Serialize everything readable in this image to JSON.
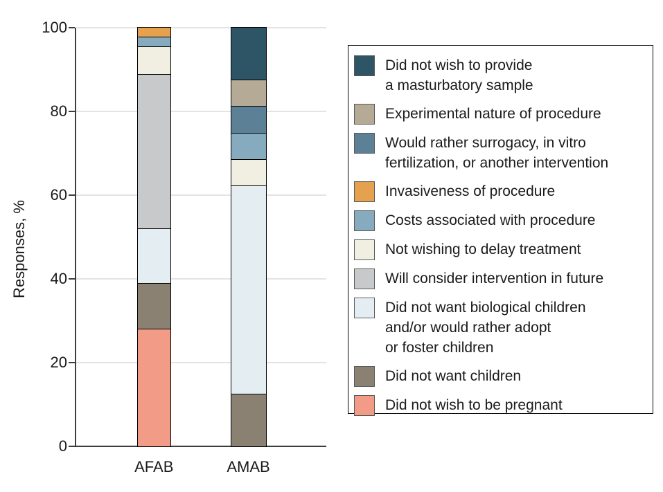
{
  "figure": {
    "ylabel": "Responses, %"
  },
  "chart_data": {
    "type": "bar",
    "stacked": true,
    "orientation": "vertical",
    "categories": [
      "AFAB",
      "AMAB"
    ],
    "ylabel": "Responses, %",
    "ylim": [
      0,
      100
    ],
    "yticks": [
      100,
      80,
      60,
      40,
      20,
      0
    ],
    "grid": true,
    "legend_position": "right",
    "series": [
      {
        "name": "Did not wish to provide a masturbatory sample",
        "legend_lines": [
          "Did not wish to provide",
          "a masturbatory sample"
        ],
        "color": "#2E5566",
        "values": [
          0,
          12.5
        ]
      },
      {
        "name": "Experimental nature of procedure",
        "legend_lines": [
          "Experimental nature of procedure"
        ],
        "color": "#B4AA96",
        "values": [
          0,
          6.25
        ]
      },
      {
        "name": "Would rather surrogacy, in vitro fertilization, or another intervention",
        "legend_lines": [
          "Would rather surrogacy, in vitro",
          "fertilization, or another intervention"
        ],
        "color": "#5C8095",
        "values": [
          0,
          6.25
        ]
      },
      {
        "name": "Invasiveness of procedure",
        "legend_lines": [
          "Invasiveness of procedure"
        ],
        "color": "#E6A14F",
        "values": [
          2.2,
          0
        ]
      },
      {
        "name": "Costs associated with procedure",
        "legend_lines": [
          "Costs associated with procedure"
        ],
        "color": "#86ABBE",
        "values": [
          2.2,
          6.25
        ]
      },
      {
        "name": "Not wishing to delay treatment",
        "legend_lines": [
          "Not wishing to delay treatment"
        ],
        "color": "#F0EFE2",
        "values": [
          6.5,
          6.25
        ]
      },
      {
        "name": "Will consider intervention in future",
        "legend_lines": [
          "Will consider intervention in future"
        ],
        "color": "#C8C9CB",
        "values": [
          37.0,
          0
        ]
      },
      {
        "name": "Did not want biological children and/or would rather adopt or foster children",
        "legend_lines": [
          "Did not want biological children",
          "and/or would rather adopt",
          "or foster children"
        ],
        "color": "#E4EDF2",
        "values": [
          13.0,
          50.0
        ]
      },
      {
        "name": "Did not want children",
        "legend_lines": [
          "Did not want children"
        ],
        "color": "#8B8172",
        "values": [
          10.9,
          12.5
        ]
      },
      {
        "name": "Did not wish to be pregnant",
        "legend_lines": [
          "Did not wish to be pregnant"
        ],
        "color": "#F29C88",
        "values": [
          28.2,
          0
        ]
      }
    ]
  }
}
